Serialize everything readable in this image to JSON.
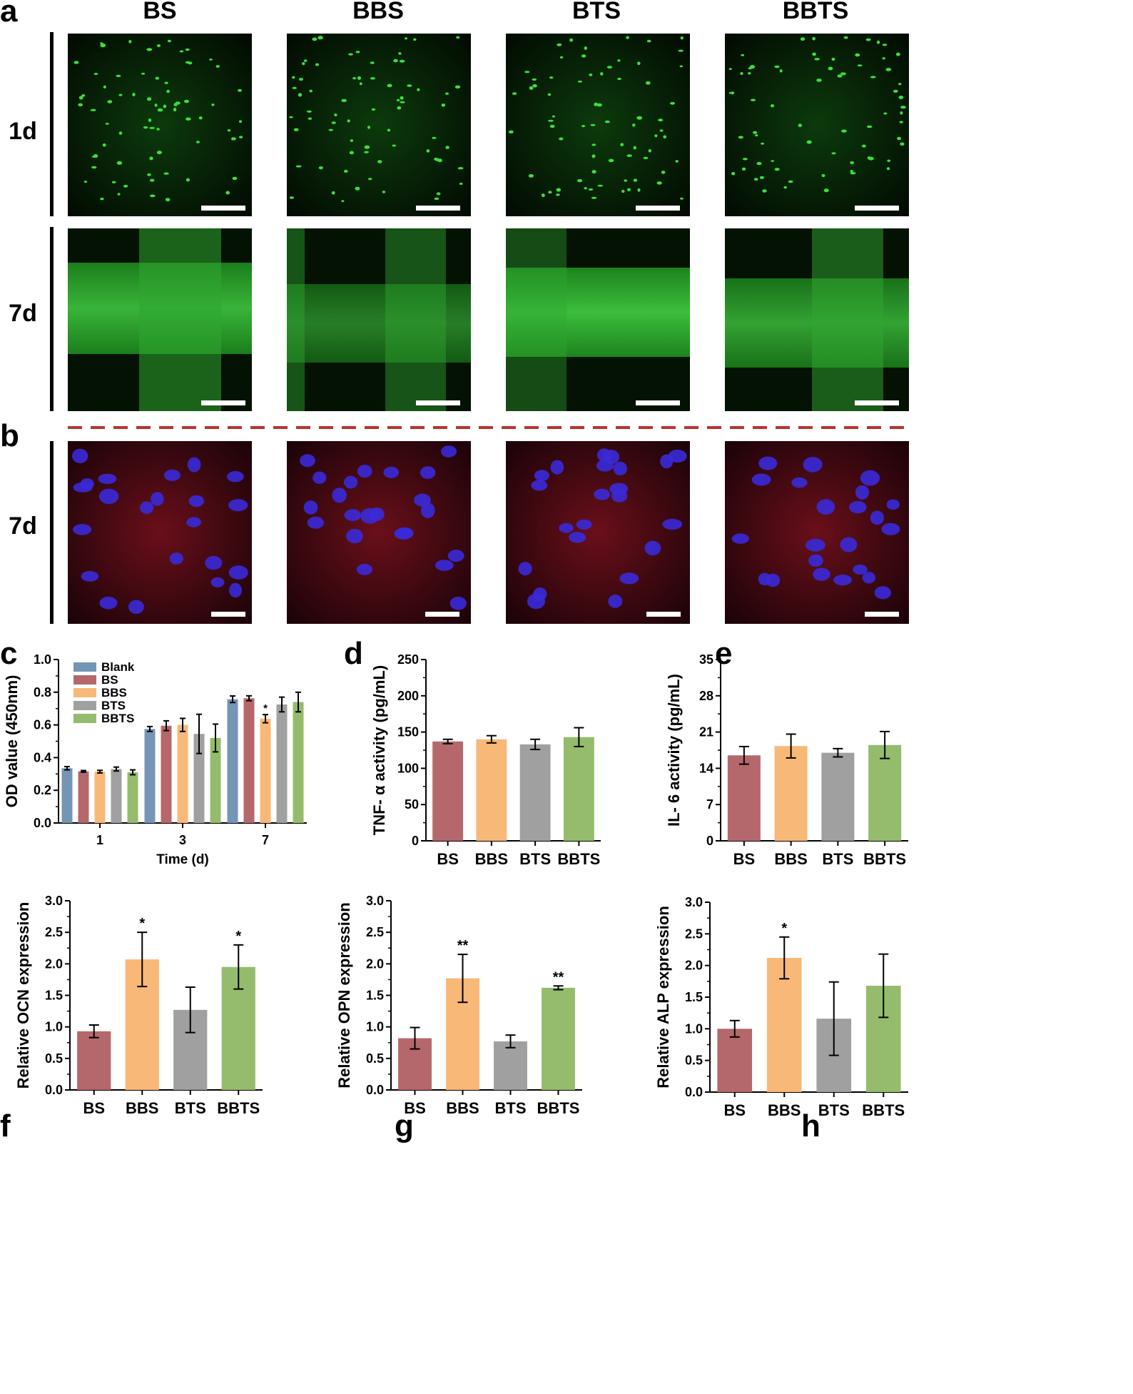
{
  "figure": {
    "panel_letters": {
      "a": "a",
      "b": "b",
      "c": "c",
      "d": "d",
      "e": "e",
      "f": "f",
      "g": "g",
      "h": "h"
    },
    "groups": [
      "BS",
      "BBS",
      "BTS",
      "BBTS"
    ],
    "rows_a": [
      "1d",
      "7d"
    ],
    "row_b": "7d"
  },
  "colors": {
    "blank": "#7595b5",
    "bs": "#b4686b",
    "bbs": "#f8b878",
    "bts": "#a0a0a0",
    "bbts": "#94bc6c",
    "divider": "#b8332c"
  },
  "chart_data": [
    {
      "id": "c",
      "type": "bar",
      "categories": [
        "1",
        "3",
        "7"
      ],
      "series": [
        {
          "name": "Blank",
          "values": [
            0.335,
            0.575,
            0.757
          ],
          "errors": [
            0.01,
            0.015,
            0.02
          ]
        },
        {
          "name": "BS",
          "values": [
            0.316,
            0.595,
            0.763
          ],
          "errors": [
            0.005,
            0.03,
            0.015
          ]
        },
        {
          "name": "BBS",
          "values": [
            0.314,
            0.6,
            0.638
          ],
          "errors": [
            0.008,
            0.04,
            0.025
          ]
        },
        {
          "name": "BTS",
          "values": [
            0.33,
            0.545,
            0.725
          ],
          "errors": [
            0.012,
            0.12,
            0.045
          ]
        },
        {
          "name": "BBTS",
          "values": [
            0.31,
            0.52,
            0.74
          ],
          "errors": [
            0.015,
            0.085,
            0.06
          ]
        }
      ],
      "annotations": [
        {
          "category": "7",
          "series": "BBS",
          "text": "*"
        }
      ],
      "xlabel": "Time (d)",
      "ylabel": "OD value (450nm)",
      "ylim": [
        0,
        1.0
      ],
      "yticks": [
        "0.0",
        "0.2",
        "0.4",
        "0.6",
        "0.8",
        "1.0"
      ],
      "legend": "top-left"
    },
    {
      "id": "d",
      "type": "bar",
      "categories": [
        "BS",
        "BBS",
        "BTS",
        "BBTS"
      ],
      "values": [
        137,
        140,
        133,
        143
      ],
      "errors": [
        3,
        5,
        7,
        13
      ],
      "ylabel": "TNF- α activity (pg/mL)",
      "ylim": [
        0,
        250
      ],
      "yticks": [
        "0",
        "50",
        "100",
        "150",
        "200",
        "250"
      ]
    },
    {
      "id": "e",
      "type": "bar",
      "categories": [
        "BS",
        "BBS",
        "BTS",
        "BBTS"
      ],
      "values": [
        16.5,
        18.3,
        17.0,
        18.5
      ],
      "errors": [
        1.7,
        2.3,
        0.8,
        2.6
      ],
      "ylabel": "IL- 6 activity (pg/mL)",
      "ylim": [
        0,
        35
      ],
      "yticks": [
        "0",
        "7",
        "14",
        "21",
        "28",
        "35"
      ]
    },
    {
      "id": "f",
      "type": "bar",
      "categories": [
        "BS",
        "BBS",
        "BTS",
        "BBTS"
      ],
      "values": [
        0.93,
        2.07,
        1.27,
        1.95
      ],
      "errors": [
        0.1,
        0.43,
        0.36,
        0.35
      ],
      "stars": [
        "",
        "*",
        "",
        "*"
      ],
      "ylabel": "Relative  OCN expression",
      "ylim": [
        0,
        3.0
      ],
      "yticks": [
        "0.0",
        "0.5",
        "1.0",
        "1.5",
        "2.0",
        "2.5",
        "3.0"
      ]
    },
    {
      "id": "g",
      "type": "bar",
      "categories": [
        "BS",
        "BBS",
        "BTS",
        "BBTS"
      ],
      "values": [
        0.82,
        1.77,
        0.77,
        1.62
      ],
      "errors": [
        0.17,
        0.38,
        0.1,
        0.03
      ],
      "stars": [
        "",
        "**",
        "",
        "**"
      ],
      "ylabel": "Relative  OPN expression",
      "ylim": [
        0,
        3.0
      ],
      "yticks": [
        "0.0",
        "0.5",
        "1.0",
        "1.5",
        "2.0",
        "2.5",
        "3.0"
      ]
    },
    {
      "id": "h",
      "type": "bar",
      "categories": [
        "BS",
        "BBS",
        "BTS",
        "BBTS"
      ],
      "values": [
        1.0,
        2.12,
        1.16,
        1.68
      ],
      "errors": [
        0.13,
        0.33,
        0.58,
        0.5
      ],
      "stars": [
        "",
        "*",
        "",
        ""
      ],
      "ylabel": "Relative  ALP expression",
      "ylim": [
        0,
        3.0
      ],
      "yticks": [
        "0.0",
        "0.5",
        "1.0",
        "1.5",
        "2.0",
        "2.5",
        "3.0"
      ]
    }
  ]
}
